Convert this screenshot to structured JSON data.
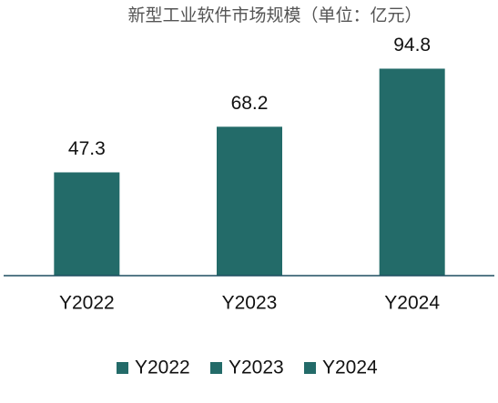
{
  "chart_data": {
    "type": "bar",
    "title": "新型工业软件市场规模（单位：亿元）",
    "categories": [
      "Y2022",
      "Y2023",
      "Y2024"
    ],
    "values": [
      47.3,
      68.2,
      94.8
    ],
    "color": "#236b69",
    "ylim": [
      0,
      100
    ],
    "legend": "bottom"
  }
}
